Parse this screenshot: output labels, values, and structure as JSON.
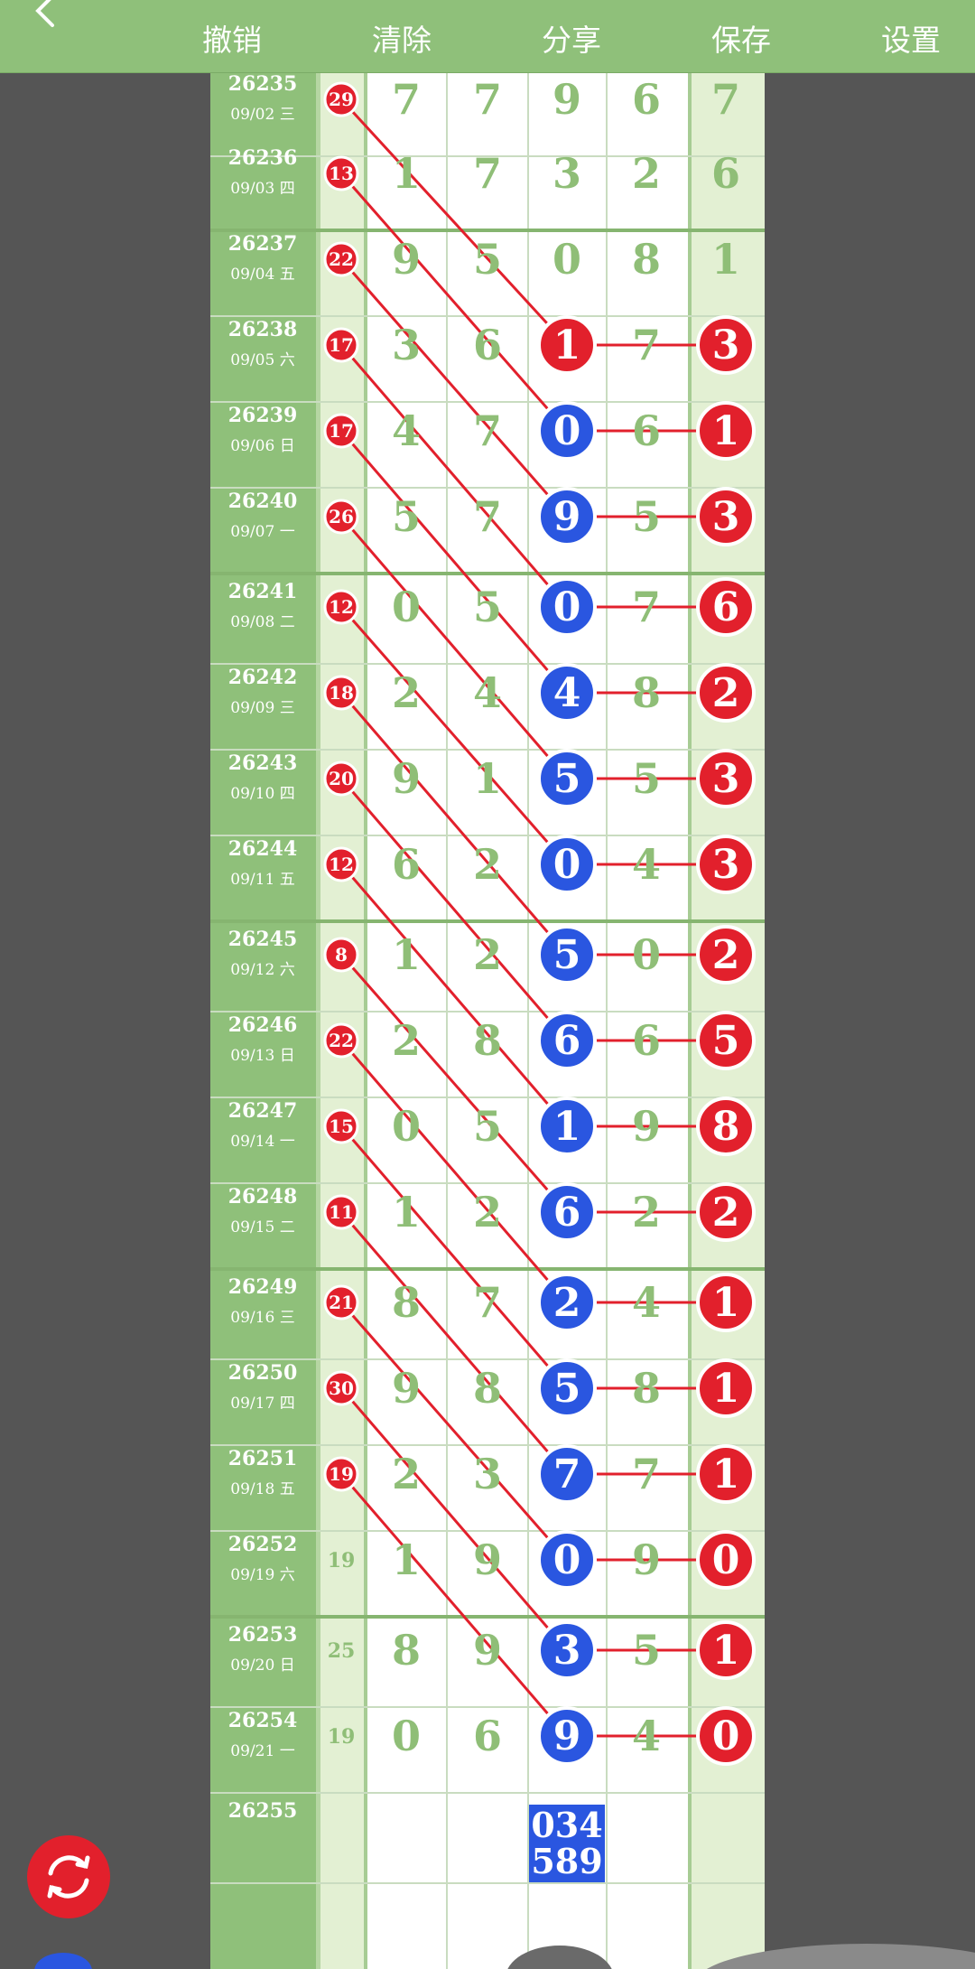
{
  "toolbar": {
    "buttons": [
      {
        "label": "撤销",
        "icon": "undo-icon"
      },
      {
        "label": "清除",
        "icon": "clear-icon"
      },
      {
        "label": "分享",
        "icon": "share-icon"
      },
      {
        "label": "保存",
        "icon": "save-icon"
      },
      {
        "label": "设置",
        "icon": "settings-icon"
      }
    ]
  },
  "rows": [
    {
      "issue": "26235",
      "date": "09/02 三",
      "sum": "29",
      "sum_red": true,
      "d": [
        "7",
        "7",
        "9",
        "6"
      ],
      "mark": null,
      "last": "7",
      "last_red": false
    },
    {
      "issue": "26236",
      "date": "09/03 四",
      "sum": "13",
      "sum_red": true,
      "d": [
        "1",
        "7",
        "3",
        "2"
      ],
      "mark": null,
      "last": "6",
      "last_red": false
    },
    {
      "issue": "26237",
      "date": "09/04 五",
      "sum": "22",
      "sum_red": true,
      "d": [
        "9",
        "5",
        "0",
        "8"
      ],
      "mark": null,
      "last": "1",
      "last_red": false
    },
    {
      "issue": "26238",
      "date": "09/05 六",
      "sum": "17",
      "sum_red": true,
      "d": [
        "3",
        "6",
        "1",
        "7"
      ],
      "mark": "red",
      "last": "3",
      "last_red": true
    },
    {
      "issue": "26239",
      "date": "09/06 日",
      "sum": "17",
      "sum_red": true,
      "d": [
        "4",
        "7",
        "0",
        "6"
      ],
      "mark": "blue",
      "last": "1",
      "last_red": true
    },
    {
      "issue": "26240",
      "date": "09/07 一",
      "sum": "26",
      "sum_red": true,
      "d": [
        "5",
        "7",
        "9",
        "5"
      ],
      "mark": "blue",
      "last": "3",
      "last_red": true
    },
    {
      "issue": "26241",
      "date": "09/08 二",
      "sum": "12",
      "sum_red": true,
      "d": [
        "0",
        "5",
        "0",
        "7"
      ],
      "mark": "blue",
      "last": "6",
      "last_red": true
    },
    {
      "issue": "26242",
      "date": "09/09 三",
      "sum": "18",
      "sum_red": true,
      "d": [
        "2",
        "4",
        "4",
        "8"
      ],
      "mark": "blue",
      "last": "2",
      "last_red": true
    },
    {
      "issue": "26243",
      "date": "09/10 四",
      "sum": "20",
      "sum_red": true,
      "d": [
        "9",
        "1",
        "5",
        "5"
      ],
      "mark": "blue",
      "last": "3",
      "last_red": true
    },
    {
      "issue": "26244",
      "date": "09/11 五",
      "sum": "12",
      "sum_red": true,
      "d": [
        "6",
        "2",
        "0",
        "4"
      ],
      "mark": "blue",
      "last": "3",
      "last_red": true
    },
    {
      "issue": "26245",
      "date": "09/12 六",
      "sum": "8",
      "sum_red": true,
      "d": [
        "1",
        "2",
        "5",
        "0"
      ],
      "mark": "blue",
      "last": "2",
      "last_red": true
    },
    {
      "issue": "26246",
      "date": "09/13 日",
      "sum": "22",
      "sum_red": true,
      "d": [
        "2",
        "8",
        "6",
        "6"
      ],
      "mark": "blue",
      "last": "5",
      "last_red": true
    },
    {
      "issue": "26247",
      "date": "09/14 一",
      "sum": "15",
      "sum_red": true,
      "d": [
        "0",
        "5",
        "1",
        "9"
      ],
      "mark": "blue",
      "last": "8",
      "last_red": true
    },
    {
      "issue": "26248",
      "date": "09/15 二",
      "sum": "11",
      "sum_red": true,
      "d": [
        "1",
        "2",
        "6",
        "2"
      ],
      "mark": "blue",
      "last": "2",
      "last_red": true
    },
    {
      "issue": "26249",
      "date": "09/16 三",
      "sum": "21",
      "sum_red": true,
      "d": [
        "8",
        "7",
        "2",
        "4"
      ],
      "mark": "blue",
      "last": "1",
      "last_red": true
    },
    {
      "issue": "26250",
      "date": "09/17 四",
      "sum": "30",
      "sum_red": true,
      "d": [
        "9",
        "8",
        "5",
        "8"
      ],
      "mark": "blue",
      "last": "1",
      "last_red": true
    },
    {
      "issue": "26251",
      "date": "09/18 五",
      "sum": "19",
      "sum_red": true,
      "d": [
        "2",
        "3",
        "7",
        "7"
      ],
      "mark": "blue",
      "last": "1",
      "last_red": true
    },
    {
      "issue": "26252",
      "date": "09/19 六",
      "sum": "19",
      "sum_red": false,
      "d": [
        "1",
        "9",
        "0",
        "9"
      ],
      "mark": "blue",
      "last": "0",
      "last_red": true
    },
    {
      "issue": "26253",
      "date": "09/20 日",
      "sum": "25",
      "sum_red": false,
      "d": [
        "8",
        "9",
        "3",
        "5"
      ],
      "mark": "blue",
      "last": "1",
      "last_red": true
    },
    {
      "issue": "26254",
      "date": "09/21 一",
      "sum": "19",
      "sum_red": false,
      "d": [
        "0",
        "6",
        "9",
        "4"
      ],
      "mark": "blue",
      "last": "0",
      "last_red": true
    },
    {
      "issue": "26255",
      "date": "",
      "sum": "",
      "sum_red": false,
      "d": [
        "",
        "",
        "",
        ""
      ],
      "mark": null,
      "last": "",
      "last_red": false,
      "prediction": [
        "034",
        "589"
      ]
    }
  ],
  "colors": {
    "topbar": "#8fc07a",
    "issue_col": "#8fc07a",
    "green_text": "#8fbe77",
    "red": "#e2202c",
    "blue": "#2a56e0",
    "grid_line": "#c9dcc0",
    "light_col": "#e3f0d3"
  },
  "fab": {
    "icon": "refresh-icon"
  }
}
